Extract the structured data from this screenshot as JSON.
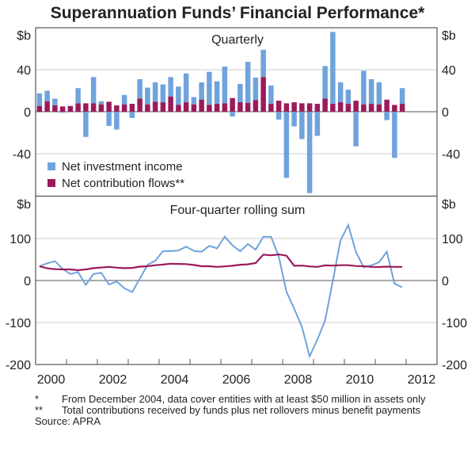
{
  "chart_data": [
    {
      "type": "bar",
      "stacked": true,
      "title": "Superannuation Funds’ Financial Performance*",
      "panel_title": "Quarterly",
      "ylabel": "$b",
      "ylim": [
        -80,
        80
      ],
      "yticks": [
        -40,
        0,
        40
      ],
      "xlim": [
        2000,
        2013
      ],
      "grid": true,
      "legend_placement": "bottom-left",
      "x_quarters_start": "2000-Q1",
      "series": [
        {
          "name": "Net investment income",
          "color": "#6fa3dc",
          "values": [
            12,
            10,
            6.5,
            -1,
            0,
            14.5,
            -24,
            25,
            3,
            -13.5,
            -17,
            9,
            -6,
            18.5,
            16,
            18.5,
            17,
            18.5,
            17.5,
            27.5,
            7,
            16.5,
            31.5,
            21.5,
            35,
            -4.5,
            17.5,
            39,
            21.5,
            26,
            17.5,
            -7.5,
            -63,
            -14,
            -26,
            -77.5,
            -23,
            31,
            68.5,
            19,
            13.5,
            -33,
            32,
            23.5,
            21,
            -8,
            -44,
            15
          ]
        },
        {
          "name": "Net contribution flows**",
          "color": "#9b1b5a",
          "values": [
            5.5,
            10,
            6,
            5,
            5.5,
            8,
            8,
            8,
            7,
            9.5,
            6,
            7,
            7.5,
            12.5,
            7,
            9.5,
            9,
            14.5,
            6.5,
            9,
            7,
            11.5,
            6.5,
            7.5,
            8,
            13,
            9,
            8.5,
            11,
            33,
            7.5,
            10.5,
            8,
            9,
            8,
            8,
            7.5,
            12.5,
            7.5,
            9,
            7.5,
            10.5,
            7,
            7.5,
            7,
            11.5,
            6.5,
            7.5
          ]
        }
      ]
    },
    {
      "type": "line",
      "panel_title": "Four-quarter rolling sum",
      "ylabel": "$b",
      "ylim": [
        -200,
        200
      ],
      "yticks": [
        -200,
        -100,
        0,
        100
      ],
      "xlim": [
        2000,
        2013
      ],
      "xticks": [
        "2000",
        "2002",
        "2004",
        "2006",
        "2008",
        "2010",
        "2012"
      ],
      "grid": true,
      "x_quarters_start": "2000-Q1",
      "series": [
        {
          "color": "#6fa3dc",
          "values": [
            34,
            41,
            46,
            27.5,
            15.5,
            20,
            -10.5,
            15.5,
            18.5,
            -9.5,
            -2.5,
            -18.5,
            -27.5,
            4.5,
            37.5,
            47,
            70,
            70,
            71.5,
            80.5,
            70.5,
            68.5,
            82.5,
            76.5,
            104.5,
            83.5,
            69.5,
            87,
            73.5,
            104,
            104,
            57.5,
            -27,
            -67,
            -110.5,
            -180.5,
            -140.5,
            -95.5,
            -1,
            95.5,
            132,
            68,
            31.5,
            36,
            43.5,
            68.5,
            -7.5,
            -16
          ]
        },
        {
          "color": "#9b1b5a",
          "values": [
            34,
            29,
            27,
            26.5,
            26.5,
            24.5,
            26.5,
            29.5,
            31,
            32.5,
            30.5,
            29.5,
            30,
            33,
            34,
            36.5,
            38,
            40,
            39.5,
            39,
            37,
            34,
            34,
            32.5,
            33.5,
            35,
            37.5,
            38.5,
            41.5,
            61.5,
            60,
            62,
            59,
            35,
            35.5,
            33.5,
            32.5,
            36,
            35.5,
            36.5,
            36.5,
            34.5,
            34,
            32.5,
            32,
            33,
            32.5,
            32.5
          ]
        }
      ]
    }
  ],
  "notes": [
    {
      "mark": "*",
      "text": "From December 2004, data cover entities with at least $50 million in assets only"
    },
    {
      "mark": "**",
      "text": "Total contributions received by funds plus net rollovers minus benefit payments"
    }
  ],
  "source": "Source: APRA"
}
